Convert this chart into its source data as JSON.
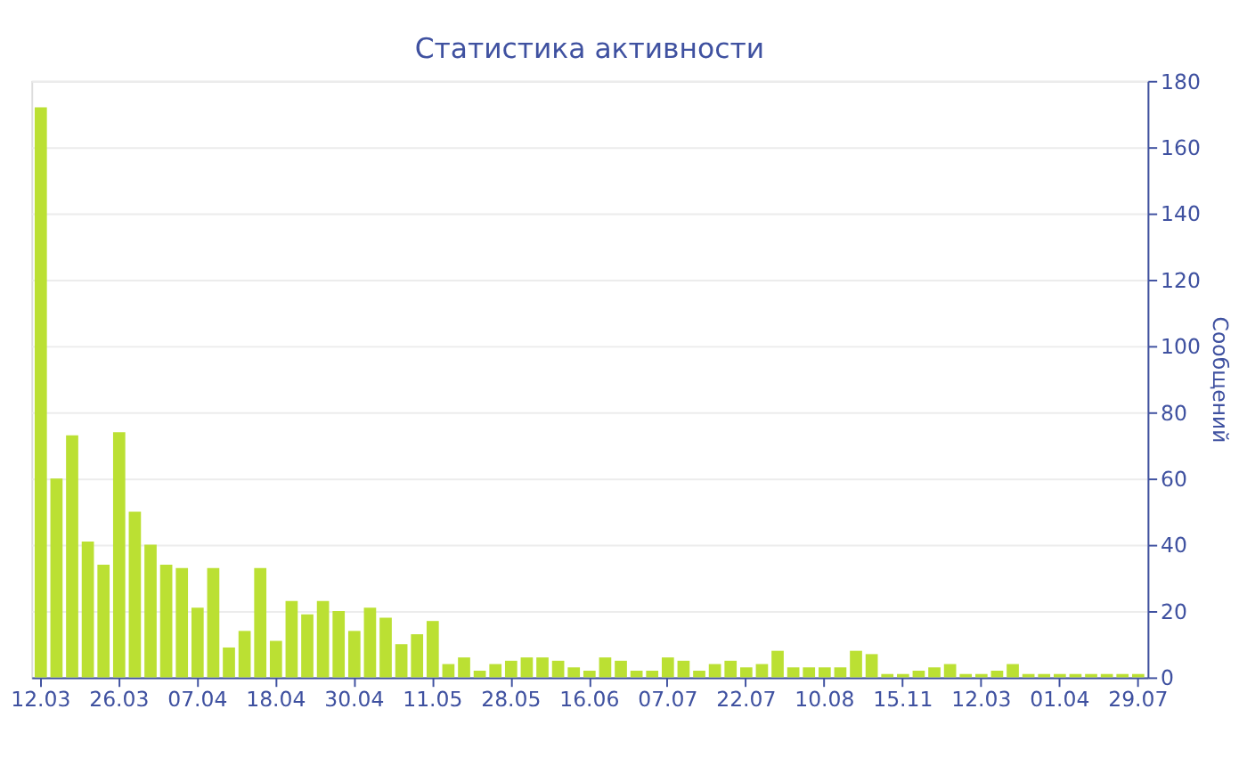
{
  "chart_data": {
    "type": "bar",
    "title": "Статистика активности",
    "ylabel": "Сообщений",
    "categories": [
      "12.03",
      null,
      null,
      null,
      null,
      "26.03",
      null,
      null,
      null,
      null,
      "07.04",
      null,
      null,
      null,
      null,
      "18.04",
      null,
      null,
      null,
      null,
      "30.04",
      null,
      null,
      null,
      null,
      "11.05",
      null,
      null,
      null,
      null,
      "28.05",
      null,
      null,
      null,
      null,
      "16.06",
      null,
      null,
      null,
      null,
      "07.07",
      null,
      null,
      null,
      null,
      "22.07",
      null,
      null,
      null,
      null,
      "10.08",
      null,
      null,
      null,
      null,
      "15.11",
      null,
      null,
      null,
      null,
      "12.03",
      null,
      null,
      null,
      null,
      "01.04",
      null,
      null,
      null,
      null,
      "29.07"
    ],
    "values": [
      172,
      60,
      73,
      41,
      34,
      74,
      50,
      40,
      34,
      33,
      21,
      33,
      9,
      14,
      33,
      11,
      23,
      19,
      23,
      20,
      14,
      21,
      18,
      10,
      13,
      17,
      4,
      6,
      2,
      4,
      5,
      6,
      6,
      5,
      3,
      2,
      6,
      5,
      2,
      2,
      6,
      5,
      2,
      4,
      5,
      3,
      4,
      8,
      3,
      3,
      3,
      3,
      8,
      7,
      1,
      1,
      2,
      3,
      4,
      1,
      1,
      2,
      4,
      1,
      1,
      1,
      1,
      1,
      1,
      1,
      1
    ],
    "color": "#bbe033",
    "ylim": [
      0,
      180
    ],
    "yticks": [
      0,
      20,
      40,
      60,
      80,
      100,
      120,
      140,
      160,
      180
    ],
    "grid": "y"
  }
}
